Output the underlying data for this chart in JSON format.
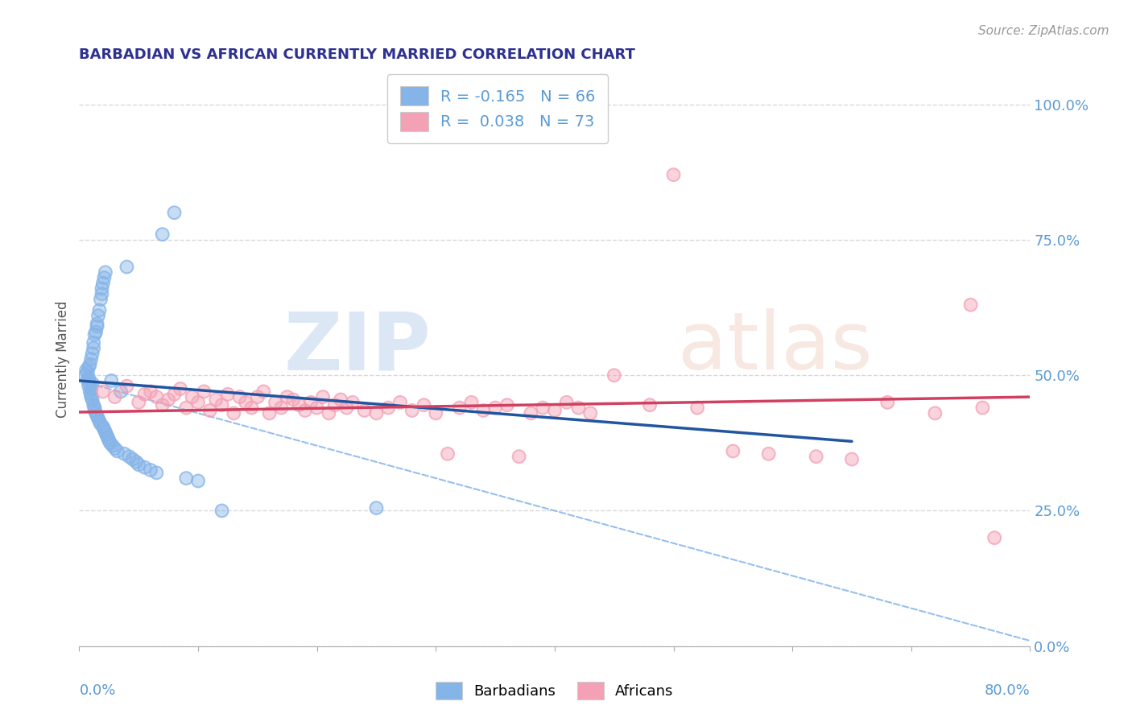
{
  "title": "BARBADIAN VS AFRICAN CURRENTLY MARRIED CORRELATION CHART",
  "source": "Source: ZipAtlas.com",
  "ylabel": "Currently Married",
  "barbadian_color": "#85b4e8",
  "african_color": "#f4a0b5",
  "barbadian_line_color": "#2155a0",
  "african_line_color": "#d04060",
  "dashed_line_color": "#85b4e8",
  "barbadian_N": 66,
  "african_N": 73,
  "legend_label1": "R = -0.165   N = 66",
  "legend_label2": "R =  0.038   N = 73",
  "barbadians_label": "Barbadians",
  "africans_label": "Africans",
  "background_color": "#ffffff",
  "grid_color": "#d8d8d8",
  "title_color": "#2e3191",
  "axis_color": "#5b9bd5",
  "xlim": [
    0.0,
    0.8
  ],
  "ylim": [
    0.0,
    1.06
  ],
  "right_ytick_vals": [
    0.0,
    0.25,
    0.5,
    0.75,
    1.0
  ],
  "right_yticklabels": [
    "0.0%",
    "25.0%",
    "50.0%",
    "75.0%",
    "100.0%"
  ],
  "barbadian_x": [
    0.005,
    0.006,
    0.007,
    0.007,
    0.008,
    0.008,
    0.008,
    0.009,
    0.009,
    0.009,
    0.01,
    0.01,
    0.01,
    0.01,
    0.011,
    0.011,
    0.011,
    0.012,
    0.012,
    0.012,
    0.013,
    0.013,
    0.013,
    0.014,
    0.014,
    0.015,
    0.015,
    0.015,
    0.016,
    0.016,
    0.017,
    0.017,
    0.018,
    0.018,
    0.019,
    0.019,
    0.02,
    0.02,
    0.021,
    0.021,
    0.022,
    0.022,
    0.023,
    0.024,
    0.025,
    0.026,
    0.027,
    0.028,
    0.03,
    0.032,
    0.035,
    0.038,
    0.04,
    0.042,
    0.045,
    0.048,
    0.05,
    0.055,
    0.06,
    0.065,
    0.07,
    0.08,
    0.09,
    0.1,
    0.12,
    0.25
  ],
  "barbadian_y": [
    0.5,
    0.51,
    0.49,
    0.505,
    0.495,
    0.48,
    0.515,
    0.47,
    0.52,
    0.485,
    0.46,
    0.475,
    0.53,
    0.465,
    0.54,
    0.455,
    0.485,
    0.55,
    0.445,
    0.56,
    0.44,
    0.575,
    0.435,
    0.58,
    0.43,
    0.59,
    0.425,
    0.595,
    0.42,
    0.61,
    0.415,
    0.62,
    0.64,
    0.41,
    0.65,
    0.66,
    0.405,
    0.67,
    0.68,
    0.4,
    0.395,
    0.69,
    0.39,
    0.385,
    0.38,
    0.375,
    0.49,
    0.37,
    0.365,
    0.36,
    0.47,
    0.355,
    0.7,
    0.35,
    0.345,
    0.34,
    0.335,
    0.33,
    0.325,
    0.32,
    0.76,
    0.8,
    0.31,
    0.305,
    0.25,
    0.255
  ],
  "african_x": [
    0.02,
    0.03,
    0.04,
    0.05,
    0.055,
    0.06,
    0.065,
    0.07,
    0.075,
    0.08,
    0.085,
    0.09,
    0.095,
    0.1,
    0.105,
    0.11,
    0.115,
    0.12,
    0.125,
    0.13,
    0.135,
    0.14,
    0.145,
    0.15,
    0.155,
    0.16,
    0.165,
    0.17,
    0.175,
    0.18,
    0.185,
    0.19,
    0.195,
    0.2,
    0.205,
    0.21,
    0.215,
    0.22,
    0.225,
    0.23,
    0.24,
    0.25,
    0.26,
    0.27,
    0.28,
    0.29,
    0.3,
    0.31,
    0.32,
    0.33,
    0.34,
    0.35,
    0.36,
    0.37,
    0.38,
    0.39,
    0.4,
    0.41,
    0.42,
    0.43,
    0.45,
    0.48,
    0.5,
    0.52,
    0.55,
    0.58,
    0.62,
    0.65,
    0.68,
    0.72,
    0.75,
    0.76,
    0.77
  ],
  "african_y": [
    0.47,
    0.46,
    0.48,
    0.45,
    0.465,
    0.47,
    0.46,
    0.445,
    0.455,
    0.465,
    0.475,
    0.44,
    0.46,
    0.45,
    0.47,
    0.435,
    0.455,
    0.445,
    0.465,
    0.43,
    0.46,
    0.45,
    0.44,
    0.46,
    0.47,
    0.43,
    0.45,
    0.44,
    0.46,
    0.455,
    0.445,
    0.435,
    0.45,
    0.44,
    0.46,
    0.43,
    0.445,
    0.455,
    0.44,
    0.45,
    0.435,
    0.43,
    0.44,
    0.45,
    0.435,
    0.445,
    0.43,
    0.355,
    0.44,
    0.45,
    0.435,
    0.44,
    0.445,
    0.35,
    0.43,
    0.44,
    0.435,
    0.45,
    0.44,
    0.43,
    0.5,
    0.445,
    0.87,
    0.44,
    0.36,
    0.355,
    0.35,
    0.345,
    0.45,
    0.43,
    0.63,
    0.44,
    0.2
  ],
  "barb_line_x": [
    0.0,
    0.65
  ],
  "barb_line_y": [
    0.49,
    0.378
  ],
  "afr_line_x": [
    0.0,
    0.8
  ],
  "afr_line_y": [
    0.432,
    0.46
  ],
  "dash_line_x": [
    0.0,
    0.8
  ],
  "dash_line_y": [
    0.49,
    0.01
  ]
}
